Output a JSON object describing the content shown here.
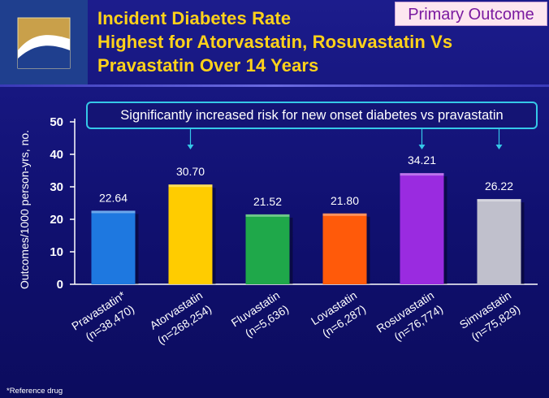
{
  "header": {
    "title_lines": [
      "Incident Diabetes Rate",
      "Highest for Atorvastatin, Rosuvastatin Vs",
      "Pravastatin Over 14 Years"
    ],
    "badge": "Primary Outcome"
  },
  "callout": {
    "text": "Significantly increased risk for new onset diabetes vs pravastatin",
    "arrow_targets": [
      "Atorvastatin",
      "Rosuvastatin",
      "Simvastatin"
    ]
  },
  "footnote": "*Reference drug",
  "colors": {
    "background": "#14147a",
    "title": "#ffd21a",
    "callout_border": "#35c8e8"
  },
  "chart_data": {
    "type": "bar",
    "categories": [
      {
        "name": "Pravastatin*",
        "n": "(n=38,470)"
      },
      {
        "name": "Atorvastatin",
        "n": "(n=268,254)"
      },
      {
        "name": "Fluvastatin",
        "n": "(n=5,636)"
      },
      {
        "name": "Lovastatin",
        "n": "(n=6,287)"
      },
      {
        "name": "Rosuvastatin",
        "n": "(n=76,774)"
      },
      {
        "name": "Simvastatin",
        "n": "(n=75,829)"
      }
    ],
    "values": [
      22.64,
      30.7,
      21.52,
      21.8,
      34.21,
      26.22
    ],
    "value_labels": [
      "22.64",
      "30.70",
      "21.52",
      "21.80",
      "34.21",
      "26.22"
    ],
    "bar_colors": [
      "#1e78e0",
      "#ffcc00",
      "#1fa84a",
      "#ff5a0a",
      "#9a2be0",
      "#c0c0cc"
    ],
    "ylabel": "Outcomes/1000 person-yrs, no.",
    "yticks": [
      0,
      10,
      20,
      30,
      40,
      50
    ],
    "ylim": [
      0,
      50
    ],
    "grid": false
  }
}
